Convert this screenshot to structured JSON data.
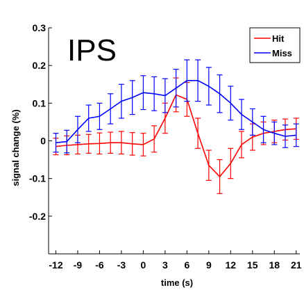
{
  "chart_data": {
    "type": "line",
    "title": "IPS",
    "xlabel": "time (s)",
    "ylabel": "signal change (%)",
    "xlim": [
      -13,
      21.5
    ],
    "ylim": [
      -0.3,
      0.3
    ],
    "xticks": [
      -12,
      -9,
      -6,
      -3,
      0,
      3,
      6,
      9,
      12,
      15,
      18,
      21
    ],
    "xtick_labels": [
      "-12",
      "-9",
      "-6",
      "-3",
      "0",
      "3",
      "6",
      "9",
      "12",
      "15",
      "18",
      "21"
    ],
    "yticks": [
      -0.2,
      -0.1,
      0,
      0.1,
      0.2,
      0.3
    ],
    "ytick_labels": [
      "-0.2",
      "-0.1",
      "0",
      "0.1",
      "0.2",
      "0.3"
    ],
    "legend_position": "top-right",
    "grid": false,
    "x": [
      -12,
      -10.5,
      -9,
      -7.5,
      -6,
      -4.5,
      -3,
      -1.5,
      0,
      1.5,
      3,
      4.5,
      6,
      7.5,
      9,
      10.5,
      12,
      13.5,
      15,
      16.5,
      18,
      19.5,
      21
    ],
    "series": [
      {
        "name": "Hit",
        "color": "#ff0000",
        "values": [
          -0.015,
          -0.012,
          -0.01,
          -0.008,
          -0.007,
          -0.005,
          -0.005,
          -0.008,
          -0.01,
          0.005,
          0.06,
          0.122,
          0.11,
          0.02,
          -0.065,
          -0.095,
          -0.06,
          -0.01,
          0.01,
          0.02,
          0.025,
          0.03,
          0.032
        ],
        "errors": [
          0.022,
          0.025,
          0.025,
          0.025,
          0.028,
          0.028,
          0.03,
          0.03,
          0.03,
          0.035,
          0.04,
          0.045,
          0.045,
          0.04,
          0.04,
          0.045,
          0.04,
          0.035,
          0.035,
          0.03,
          0.03,
          0.028,
          0.028
        ]
      },
      {
        "name": "Miss",
        "color": "#0000ff",
        "values": [
          -0.005,
          -0.002,
          0.03,
          0.06,
          0.065,
          0.085,
          0.105,
          0.115,
          0.128,
          0.125,
          0.12,
          0.14,
          0.16,
          0.16,
          0.145,
          0.125,
          0.1,
          0.07,
          0.05,
          0.03,
          0.02,
          0.012,
          0.015
        ],
        "errors": [
          0.025,
          0.03,
          0.035,
          0.035,
          0.035,
          0.04,
          0.045,
          0.045,
          0.045,
          0.045,
          0.045,
          0.05,
          0.055,
          0.055,
          0.05,
          0.05,
          0.045,
          0.04,
          0.035,
          0.035,
          0.03,
          0.03,
          0.03
        ]
      }
    ]
  }
}
